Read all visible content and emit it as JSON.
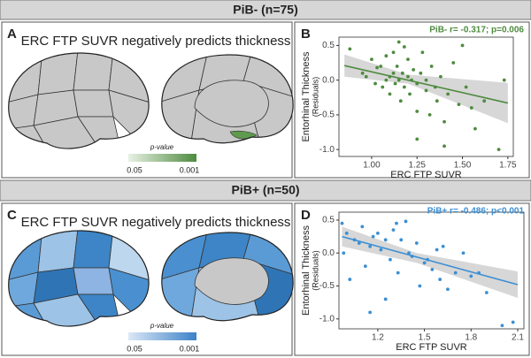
{
  "figure": {
    "sections": [
      {
        "header": "PiB- (n=75)"
      },
      {
        "header": "PiB+ (n=50)"
      }
    ],
    "panels": [
      {
        "letter": "A",
        "title": "ERC FTP SUVR negatively predicts thickness",
        "legend_title": "p-value",
        "legend_min": "0.05",
        "legend_max": "0.001"
      },
      {
        "letter": "B"
      },
      {
        "letter": "C",
        "title": "ERC FTP SUVR negatively predicts thickness",
        "legend_title": "p-value",
        "legend_min": "0.05",
        "legend_max": "0.001"
      },
      {
        "letter": "D"
      }
    ]
  },
  "chart_data": [
    {
      "type": "scatter",
      "annotation": "PiB- r= -0.317; p=0.006",
      "xlabel": "ERC FTP SUVR",
      "ylabel": "Entorhinal Thickness",
      "ylabel_sub": "(Residuals)",
      "color": "#4e8b3f",
      "xlim": [
        0.82,
        1.78
      ],
      "ylim": [
        -1.1,
        0.62
      ],
      "xticks": [
        {
          "value": 1,
          "label": "1.00"
        },
        1.25,
        {
          "value": 1.5,
          "label": "1.50"
        },
        1.75
      ],
      "yticks": [
        0.5,
        {
          "value": 0,
          "label": "0.0"
        },
        -0.5,
        {
          "value": -1,
          "label": "-1.0"
        }
      ],
      "x": [
        0.88,
        0.95,
        0.97,
        1.0,
        1.02,
        1.03,
        1.05,
        1.06,
        1.08,
        1.08,
        1.1,
        1.1,
        1.12,
        1.12,
        1.13,
        1.14,
        1.15,
        1.15,
        1.16,
        1.17,
        1.18,
        1.18,
        1.2,
        1.2,
        1.21,
        1.22,
        1.23,
        1.25,
        1.25,
        1.27,
        1.28,
        1.3,
        1.3,
        1.32,
        1.33,
        1.35,
        1.36,
        1.38,
        1.4,
        1.42,
        1.45,
        1.48,
        1.5,
        1.52,
        1.55,
        1.57,
        1.62,
        1.7,
        1.73,
        1.4,
        1.25
      ],
      "values": [
        0.45,
        0.1,
        0.05,
        0.3,
        -0.05,
        0.18,
        0.2,
        -0.1,
        0.35,
        0.0,
        0.05,
        -0.2,
        0.4,
        0.1,
        -0.05,
        0.2,
        0.55,
        0.0,
        -0.3,
        0.1,
        0.48,
        -0.1,
        0.3,
        0.05,
        -0.2,
        0.0,
        0.15,
        -0.05,
        -0.45,
        0.1,
        0.4,
        -0.15,
        0.0,
        -0.5,
        0.2,
        -0.1,
        -0.3,
        0.05,
        -0.6,
        -0.2,
        0.25,
        -0.35,
        0.5,
        -0.1,
        -0.4,
        -0.7,
        -0.3,
        -1.0,
        0.0,
        -0.95,
        -0.85
      ],
      "fit": {
        "x": [
          0.85,
          1.75
        ],
        "y": [
          0.21,
          -0.33
        ]
      },
      "band": {
        "x": [
          0.85,
          1.2,
          1.75
        ],
        "upper": [
          0.37,
          0.08,
          -0.04
        ],
        "lower": [
          0.05,
          -0.05,
          -0.62
        ]
      }
    },
    {
      "type": "scatter",
      "annotation": "PiB+ r= -0.486; p<0.001",
      "xlabel": "ERC FTP SUVR",
      "ylabel": "Entorhinal Thickness",
      "ylabel_sub": "(Residuals)",
      "color": "#3b8fd4",
      "xlim": [
        0.95,
        2.14
      ],
      "ylim": [
        -1.15,
        0.62
      ],
      "xticks": [
        1.2,
        1.5,
        1.8,
        2.1
      ],
      "yticks": [
        0.5,
        {
          "value": 0,
          "label": "0.0"
        },
        -0.5,
        {
          "value": -1,
          "label": "-1.0"
        }
      ],
      "x": [
        0.97,
        0.98,
        1.0,
        1.02,
        1.05,
        1.08,
        1.1,
        1.12,
        1.15,
        1.17,
        1.2,
        1.22,
        1.25,
        1.28,
        1.3,
        1.32,
        1.33,
        1.35,
        1.38,
        1.4,
        1.42,
        1.45,
        1.47,
        1.5,
        1.52,
        1.55,
        1.58,
        1.6,
        1.62,
        1.65,
        1.7,
        1.75,
        1.8,
        1.85,
        1.9,
        2.0,
        2.07,
        1.25,
        1.15
      ],
      "values": [
        0.45,
        0.0,
        0.3,
        -0.4,
        0.2,
        0.15,
        0.4,
        -0.2,
        0.1,
        0.25,
        0.3,
        0.05,
        0.2,
        -0.1,
        0.35,
        0.45,
        -0.3,
        0.2,
        0.48,
        0.0,
        -0.05,
        0.15,
        -0.5,
        -0.15,
        -0.1,
        -0.25,
        0.05,
        -0.4,
        0.1,
        -0.55,
        -0.3,
        0.0,
        -0.35,
        -0.3,
        -0.6,
        -1.1,
        -1.05,
        -0.7,
        -0.9
      ],
      "fit": {
        "x": [
          0.97,
          2.1
        ],
        "y": [
          0.25,
          -0.48
        ]
      },
      "band": {
        "x": [
          0.97,
          1.45,
          2.1
        ],
        "upper": [
          0.4,
          0.0,
          -0.28
        ],
        "lower": [
          0.1,
          -0.15,
          -0.68
        ]
      }
    }
  ]
}
